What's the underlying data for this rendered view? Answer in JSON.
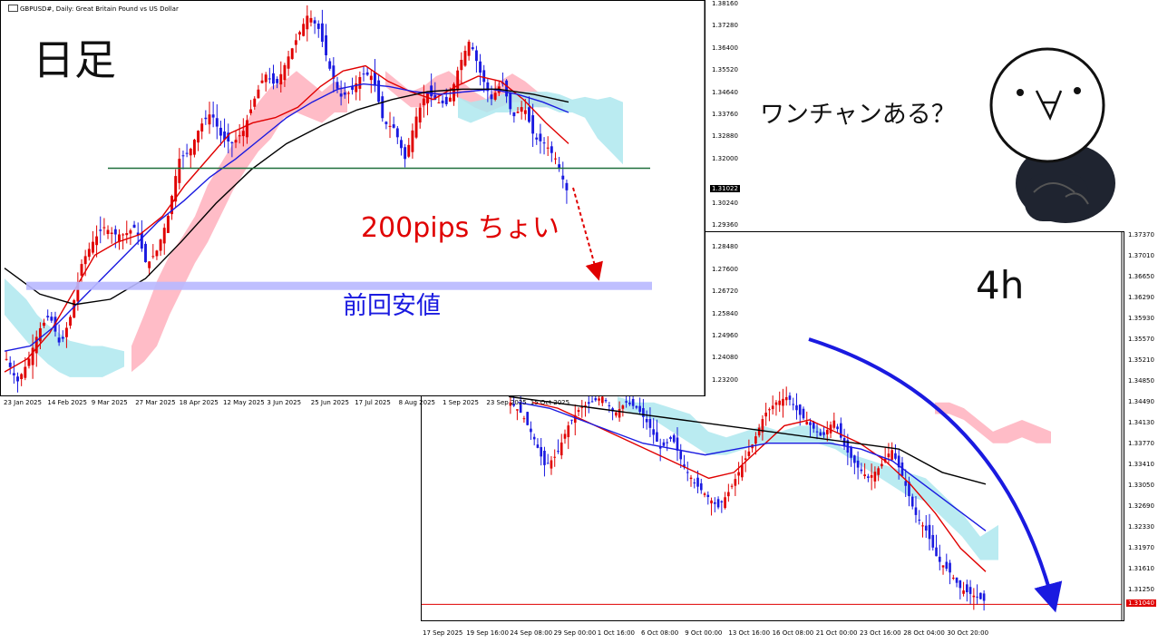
{
  "annotations": {
    "daily_label": "日足",
    "h4_label": "4h",
    "pips_label": "200pips ちょい",
    "prev_low_label": "前回安値",
    "speech": "ワンチャンある？"
  },
  "chart_data": [
    {
      "type": "candlestick",
      "title": "GBPUSD#, Daily: Great Britain Pound vs US Dollar",
      "timeframe": "Daily",
      "x_tick_labels": [
        "23 Jan 2025",
        "14 Feb 2025",
        "9 Mar 2025",
        "27 Mar 2025",
        "18 Apr 2025",
        "12 May 2025",
        "3 Jun 2025",
        "25 Jun 2025",
        "17 Jul 2025",
        "8 Aug 2025",
        "1 Sep 2025",
        "23 Sep 2025",
        "15 Oct 2025"
      ],
      "y_tick_labels": [
        "1.38160",
        "1.37280",
        "1.36400",
        "1.35520",
        "1.34640",
        "1.33760",
        "1.32880",
        "1.32000",
        "1.31022",
        "1.30240",
        "1.29360",
        "1.28480",
        "1.27600",
        "1.26720",
        "1.25840",
        "1.24960",
        "1.24080",
        "1.23200"
      ],
      "ylim": [
        1.232,
        1.3816
      ],
      "current_price": "1.31022",
      "close_path": [
        1.245,
        1.236,
        1.244,
        1.256,
        1.262,
        1.25,
        1.262,
        1.282,
        1.29,
        1.296,
        1.293,
        1.293,
        1.296,
        1.281,
        1.287,
        1.3,
        1.322,
        1.325,
        1.335,
        1.34,
        1.33,
        1.328,
        1.333,
        1.345,
        1.355,
        1.35,
        1.36,
        1.369,
        1.378,
        1.372,
        1.357,
        1.346,
        1.348,
        1.355,
        1.354,
        1.336,
        1.334,
        1.322,
        1.338,
        1.348,
        1.344,
        1.343,
        1.358,
        1.368,
        1.355,
        1.345,
        1.352,
        1.338,
        1.343,
        1.33,
        1.328,
        1.322,
        1.31
      ],
      "support_level": 1.3185,
      "previous_low": 1.273,
      "projected_target": 1.276,
      "moving_averages": [
        {
          "color": "#e00000",
          "values": [
            1.24,
            1.245,
            1.255,
            1.27,
            1.285,
            1.29,
            1.293,
            1.3,
            1.312,
            1.322,
            1.332,
            1.336,
            1.338,
            1.342,
            1.35,
            1.356,
            1.358,
            1.352,
            1.348,
            1.345,
            1.35,
            1.354,
            1.352,
            1.345,
            1.336,
            1.328
          ]
        },
        {
          "color": "#1a1ae0",
          "values": [
            1.248,
            1.25,
            1.258,
            1.268,
            1.278,
            1.288,
            1.298,
            1.306,
            1.315,
            1.322,
            1.33,
            1.338,
            1.344,
            1.349,
            1.351,
            1.35,
            1.348,
            1.347,
            1.348,
            1.349,
            1.347,
            1.344,
            1.34
          ]
        },
        {
          "color": "#000000",
          "values": [
            1.28,
            1.27,
            1.266,
            1.268,
            1.276,
            1.29,
            1.305,
            1.318,
            1.328,
            1.335,
            1.341,
            1.345,
            1.348,
            1.349,
            1.349,
            1.347,
            1.344
          ]
        }
      ]
    },
    {
      "type": "candlestick",
      "timeframe": "4h",
      "x_tick_labels": [
        "17 Sep 2025",
        "19 Sep 16:00",
        "24 Sep 08:00",
        "29 Sep 00:00",
        "1 Oct 16:00",
        "6 Oct 08:00",
        "9 Oct 00:00",
        "13 Oct 16:00",
        "16 Oct 08:00",
        "21 Oct 00:00",
        "23 Oct 16:00",
        "28 Oct 04:00",
        "30 Oct 20:00"
      ],
      "y_tick_labels": [
        "1.37370",
        "1.37010",
        "1.36650",
        "1.36290",
        "1.35930",
        "1.35570",
        "1.35210",
        "1.34850",
        "1.34490",
        "1.34130",
        "1.33770",
        "1.33410",
        "1.33050",
        "1.32690",
        "1.32330",
        "1.31970",
        "1.31610",
        "1.31250"
      ],
      "ylim": [
        1.3089,
        1.3737
      ],
      "current_price": "1.31040",
      "close_path": [
        1.345,
        1.343,
        1.339,
        1.334,
        1.336,
        1.341,
        1.344,
        1.345,
        1.346,
        1.343,
        1.345,
        1.344,
        1.341,
        1.337,
        1.339,
        1.334,
        1.331,
        1.329,
        1.327,
        1.33,
        1.334,
        1.338,
        1.343,
        1.345,
        1.346,
        1.343,
        1.341,
        1.339,
        1.342,
        1.337,
        1.334,
        1.332,
        1.334,
        1.337,
        1.332,
        1.326,
        1.323,
        1.318,
        1.316,
        1.313,
        1.312,
        1.311
      ],
      "moving_averages": [
        {
          "color": "#e00000",
          "values": [
            1.345,
            1.344,
            1.342,
            1.34,
            1.338,
            1.336,
            1.334,
            1.332,
            1.333,
            1.337,
            1.341,
            1.342,
            1.34,
            1.338,
            1.335,
            1.331,
            1.326,
            1.32,
            1.316
          ]
        },
        {
          "color": "#1a1ae0",
          "values": [
            1.345,
            1.344,
            1.342,
            1.34,
            1.338,
            1.337,
            1.336,
            1.337,
            1.338,
            1.338,
            1.338,
            1.337,
            1.335,
            1.331,
            1.327,
            1.323
          ]
        },
        {
          "color": "#000000",
          "values": [
            1.346,
            1.345,
            1.344,
            1.343,
            1.342,
            1.341,
            1.34,
            1.339,
            1.338,
            1.337,
            1.333,
            1.331
          ]
        }
      ]
    }
  ]
}
